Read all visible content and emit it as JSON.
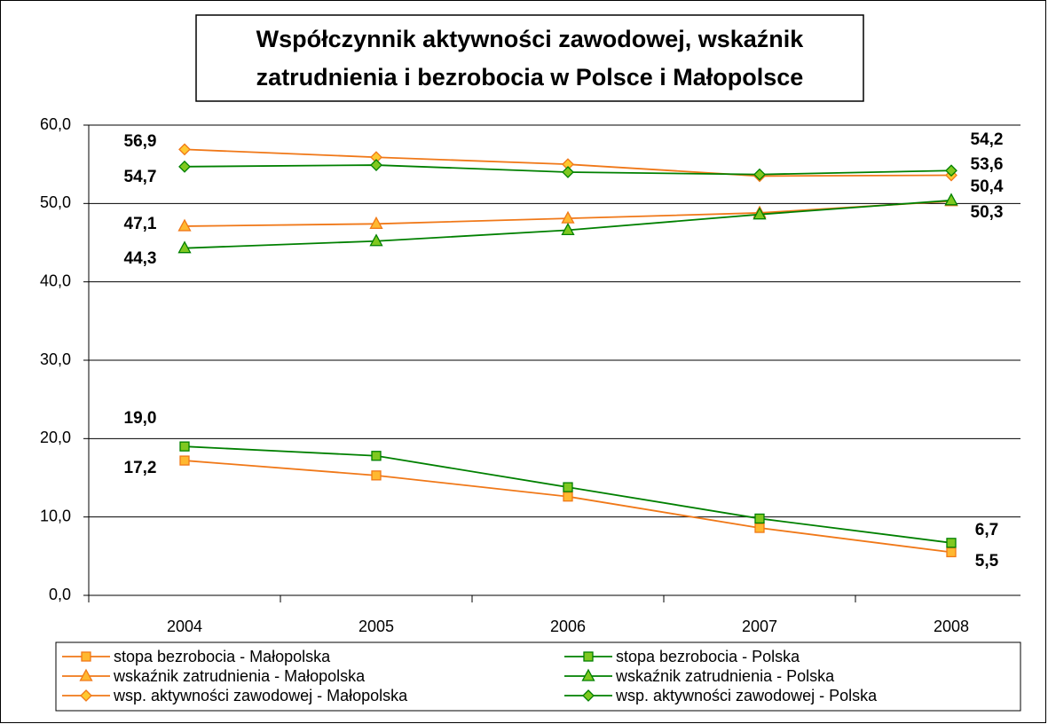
{
  "chart_data": {
    "type": "line",
    "title": [
      "Współczynnik aktywności zawodowej, wskaźnik",
      "zatrudnienia i bezrobocia w Polsce i Małopolsce"
    ],
    "categories": [
      "2004",
      "2005",
      "2006",
      "2007",
      "2008"
    ],
    "ylim": [
      0,
      60
    ],
    "yticks": [
      {
        "value": 0,
        "label": "0,0"
      },
      {
        "value": 10,
        "label": "10,0"
      },
      {
        "value": 20,
        "label": "20,0"
      },
      {
        "value": 30,
        "label": "30,0"
      },
      {
        "value": 40,
        "label": "40,0"
      },
      {
        "value": 50,
        "label": "50,0"
      },
      {
        "value": 60,
        "label": "60,0"
      }
    ],
    "grid": true,
    "series": [
      {
        "name": "stopa bezrobocia - Małopolska",
        "color": "#f07818",
        "marker_fill": "#ffb830",
        "marker": "square",
        "values": [
          17.2,
          15.3,
          12.6,
          8.6,
          5.5
        ],
        "value_labels": [
          "17,2",
          null,
          null,
          null,
          "5,5"
        ]
      },
      {
        "name": "stopa bezrobocia - Polska",
        "color": "#008000",
        "marker_fill": "#80c820",
        "marker": "square",
        "values": [
          19.0,
          17.8,
          13.8,
          9.8,
          6.7
        ],
        "value_labels": [
          "19,0",
          null,
          null,
          null,
          "6,7"
        ]
      },
      {
        "name": "wskaźnik zatrudnienia - Małopolska",
        "color": "#f07818",
        "marker_fill": "#ffb830",
        "marker": "triangle",
        "values": [
          47.1,
          47.4,
          48.1,
          48.8,
          50.3
        ],
        "value_labels": [
          "47,1",
          null,
          null,
          null,
          "50,3"
        ]
      },
      {
        "name": "wskaźnik zatrudnienia - Polska",
        "color": "#008000",
        "marker_fill": "#80c820",
        "marker": "triangle",
        "values": [
          44.3,
          45.2,
          46.6,
          48.6,
          50.4
        ],
        "value_labels": [
          "44,3",
          null,
          null,
          null,
          "50,4"
        ]
      },
      {
        "name": "wsp. aktywności zawodowej - Małopolska",
        "color": "#f07818",
        "marker_fill": "#ffc830",
        "marker": "diamond",
        "values": [
          56.9,
          55.9,
          55.0,
          53.5,
          53.6
        ],
        "value_labels": [
          "56,9",
          null,
          null,
          null,
          "53,6"
        ]
      },
      {
        "name": "wsp. aktywności zawodowej - Polska",
        "color": "#008000",
        "marker_fill": "#80c820",
        "marker": "diamond",
        "values": [
          54.7,
          54.9,
          54.0,
          53.7,
          54.2
        ],
        "value_labels": [
          "54,7",
          null,
          null,
          null,
          "54,2"
        ]
      }
    ]
  }
}
